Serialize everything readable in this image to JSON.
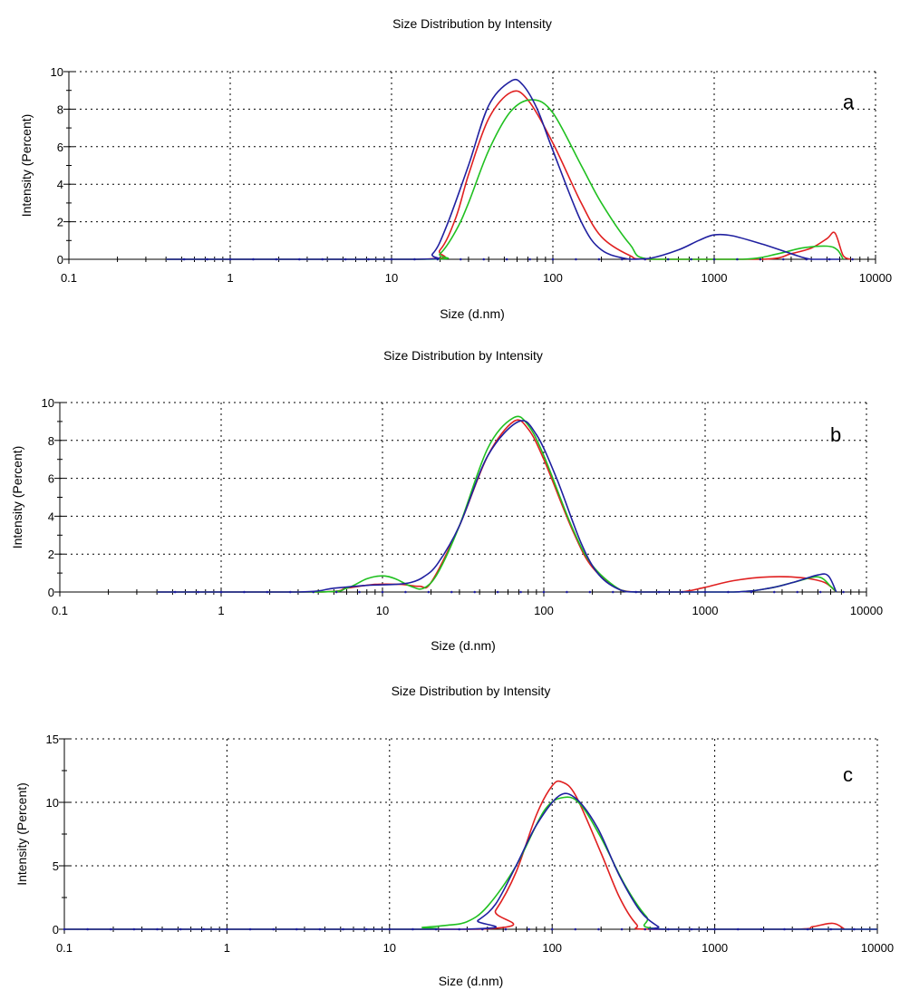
{
  "chart_data": [
    {
      "type": "line",
      "title": "Size Distribution by Intensity",
      "xlabel": "Size (d.nm)",
      "ylabel": "Intensity (Percent)",
      "x_scale": "log",
      "xlim": [
        0.1,
        10000
      ],
      "ylim": [
        0,
        10
      ],
      "x_ticks": [
        0.1,
        1,
        10,
        100,
        1000,
        10000
      ],
      "x_tick_labels": [
        "0.1",
        "1",
        "10",
        "100",
        "1000",
        "10000"
      ],
      "y_ticks": [
        0,
        2,
        4,
        6,
        8,
        10
      ],
      "y_tick_labels": [
        "0",
        "2",
        "4",
        "6",
        "8",
        "10"
      ],
      "grid": true,
      "panel_label": "a",
      "series": [
        {
          "color": "#e02020",
          "points": [
            [
              0.4,
              0
            ],
            [
              15,
              0
            ],
            [
              20,
              0.5
            ],
            [
              25,
              2.2
            ],
            [
              30,
              4.5
            ],
            [
              40,
              7.5
            ],
            [
              55,
              8.9
            ],
            [
              70,
              8.5
            ],
            [
              100,
              6.2
            ],
            [
              150,
              3.0
            ],
            [
              200,
              1.2
            ],
            [
              300,
              0.2
            ],
            [
              400,
              0
            ],
            [
              2000,
              0
            ],
            [
              3000,
              0.3
            ],
            [
              4000,
              0.6
            ],
            [
              5000,
              1.1
            ],
            [
              5600,
              1.4
            ],
            [
              6300,
              0.2
            ],
            [
              7000,
              0
            ]
          ]
        },
        {
          "color": "#20c020",
          "points": [
            [
              0.4,
              0
            ],
            [
              16,
              0
            ],
            [
              20,
              0.3
            ],
            [
              25,
              1.5
            ],
            [
              30,
              3.0
            ],
            [
              40,
              5.8
            ],
            [
              55,
              7.9
            ],
            [
              75,
              8.5
            ],
            [
              100,
              7.8
            ],
            [
              150,
              5.0
            ],
            [
              200,
              3.0
            ],
            [
              300,
              0.8
            ],
            [
              400,
              0
            ],
            [
              1500,
              0
            ],
            [
              2500,
              0.3
            ],
            [
              3500,
              0.6
            ],
            [
              5000,
              0.7
            ],
            [
              5800,
              0.5
            ],
            [
              6300,
              0
            ]
          ]
        },
        {
          "color": "#2020a0",
          "points": [
            [
              0.4,
              0
            ],
            [
              14,
              0
            ],
            [
              18,
              0.3
            ],
            [
              22,
              1.8
            ],
            [
              30,
              5.0
            ],
            [
              40,
              8.2
            ],
            [
              55,
              9.5
            ],
            [
              65,
              9.3
            ],
            [
              80,
              8.0
            ],
            [
              100,
              5.8
            ],
            [
              150,
              2.0
            ],
            [
              200,
              0.5
            ],
            [
              300,
              0
            ],
            [
              400,
              0.05
            ],
            [
              600,
              0.5
            ],
            [
              800,
              1.0
            ],
            [
              1000,
              1.3
            ],
            [
              1300,
              1.25
            ],
            [
              2000,
              0.8
            ],
            [
              3000,
              0.3
            ],
            [
              4000,
              0
            ],
            [
              6000,
              0
            ]
          ]
        }
      ]
    },
    {
      "type": "line",
      "title": "Size Distribution by Intensity",
      "xlabel": "Size (d.nm)",
      "ylabel": "Intensity (Percent)",
      "x_scale": "log",
      "xlim": [
        0.1,
        10000
      ],
      "ylim": [
        0,
        10
      ],
      "x_ticks": [
        0.1,
        1,
        10,
        100,
        1000,
        10000
      ],
      "x_tick_labels": [
        "0.1",
        "1",
        "10",
        "100",
        "1000",
        "10000"
      ],
      "y_ticks": [
        0,
        2,
        4,
        6,
        8,
        10
      ],
      "y_tick_labels": [
        "0",
        "2",
        "4",
        "6",
        "8",
        "10"
      ],
      "grid": true,
      "panel_label": "b",
      "series": [
        {
          "color": "#e02020",
          "points": [
            [
              0.4,
              0
            ],
            [
              4,
              0
            ],
            [
              6,
              0.2
            ],
            [
              9,
              0.4
            ],
            [
              13,
              0.4
            ],
            [
              17,
              0.3
            ],
            [
              20,
              0.5
            ],
            [
              30,
              3.5
            ],
            [
              45,
              7.2
            ],
            [
              65,
              9.0
            ],
            [
              80,
              8.6
            ],
            [
              100,
              7.0
            ],
            [
              150,
              3.3
            ],
            [
              200,
              1.3
            ],
            [
              300,
              0.1
            ],
            [
              400,
              0
            ],
            [
              700,
              0
            ],
            [
              1000,
              0.25
            ],
            [
              1500,
              0.6
            ],
            [
              2500,
              0.8
            ],
            [
              4000,
              0.75
            ],
            [
              5500,
              0.5
            ],
            [
              6500,
              0
            ]
          ]
        },
        {
          "color": "#20c020",
          "points": [
            [
              0.4,
              0
            ],
            [
              4,
              0
            ],
            [
              6,
              0.2
            ],
            [
              8,
              0.7
            ],
            [
              10,
              0.85
            ],
            [
              12,
              0.7
            ],
            [
              15,
              0.3
            ],
            [
              18,
              0.2
            ],
            [
              22,
              1.0
            ],
            [
              30,
              3.5
            ],
            [
              45,
              7.6
            ],
            [
              65,
              9.2
            ],
            [
              80,
              8.8
            ],
            [
              100,
              7.2
            ],
            [
              150,
              3.4
            ],
            [
              200,
              1.4
            ],
            [
              300,
              0.1
            ],
            [
              400,
              0
            ],
            [
              1500,
              0
            ],
            [
              2500,
              0.2
            ],
            [
              3500,
              0.5
            ],
            [
              5000,
              0.8
            ],
            [
              6000,
              0.3
            ],
            [
              6500,
              0
            ]
          ]
        },
        {
          "color": "#2020a0",
          "points": [
            [
              0.4,
              0
            ],
            [
              3,
              0
            ],
            [
              5,
              0.2
            ],
            [
              8,
              0.35
            ],
            [
              12,
              0.4
            ],
            [
              15,
              0.5
            ],
            [
              18,
              0.8
            ],
            [
              22,
              1.5
            ],
            [
              30,
              3.5
            ],
            [
              45,
              7.2
            ],
            [
              70,
              9.0
            ],
            [
              90,
              8.3
            ],
            [
              120,
              6.0
            ],
            [
              170,
              2.6
            ],
            [
              220,
              0.9
            ],
            [
              300,
              0.1
            ],
            [
              400,
              0
            ],
            [
              1500,
              0
            ],
            [
              2500,
              0.2
            ],
            [
              3500,
              0.5
            ],
            [
              5000,
              0.9
            ],
            [
              5800,
              0.85
            ],
            [
              6500,
              0
            ]
          ]
        }
      ]
    },
    {
      "type": "line",
      "title": "Size Distribution by Intensity",
      "xlabel": "Size (d.nm)",
      "ylabel": "Intensity (Percent)",
      "x_scale": "log",
      "xlim": [
        0.1,
        10000
      ],
      "ylim": [
        0,
        15
      ],
      "x_ticks": [
        0.1,
        1,
        10,
        100,
        1000,
        10000
      ],
      "x_tick_labels": [
        "0.1",
        "1",
        "10",
        "100",
        "1000",
        "10000"
      ],
      "y_ticks": [
        0,
        5,
        10,
        15
      ],
      "y_tick_labels": [
        "0",
        "5",
        "10",
        "15"
      ],
      "grid": true,
      "panel_label": "c",
      "series": [
        {
          "color": "#e02020",
          "points": [
            [
              0.1,
              0
            ],
            [
              35,
              0
            ],
            [
              45,
              1.5
            ],
            [
              60,
              4.5
            ],
            [
              80,
              9.0
            ],
            [
              100,
              11.3
            ],
            [
              115,
              11.6
            ],
            [
              140,
              10.5
            ],
            [
              200,
              6.0
            ],
            [
              260,
              2.5
            ],
            [
              330,
              0.4
            ],
            [
              400,
              0
            ],
            [
              3000,
              0
            ],
            [
              4000,
              0.2
            ],
            [
              5000,
              0.45
            ],
            [
              5600,
              0.4
            ],
            [
              6300,
              0
            ]
          ]
        },
        {
          "color": "#20c020",
          "points": [
            [
              0.1,
              0
            ],
            [
              13,
              0
            ],
            [
              16,
              0.15
            ],
            [
              22,
              0.3
            ],
            [
              30,
              0.6
            ],
            [
              40,
              1.8
            ],
            [
              60,
              5.0
            ],
            [
              90,
              9.4
            ],
            [
              120,
              10.4
            ],
            [
              150,
              9.8
            ],
            [
              200,
              7.2
            ],
            [
              280,
              3.5
            ],
            [
              380,
              1.0
            ],
            [
              500,
              0
            ],
            [
              10000,
              0
            ]
          ]
        },
        {
          "color": "#2020a0",
          "points": [
            [
              0.1,
              0
            ],
            [
              28,
              0
            ],
            [
              35,
              0.7
            ],
            [
              45,
              2.0
            ],
            [
              60,
              5.0
            ],
            [
              80,
              8.2
            ],
            [
              110,
              10.5
            ],
            [
              140,
              10.3
            ],
            [
              190,
              8.0
            ],
            [
              260,
              4.2
            ],
            [
              350,
              1.4
            ],
            [
              450,
              0.2
            ],
            [
              500,
              0
            ],
            [
              10000,
              0
            ]
          ]
        }
      ]
    }
  ]
}
